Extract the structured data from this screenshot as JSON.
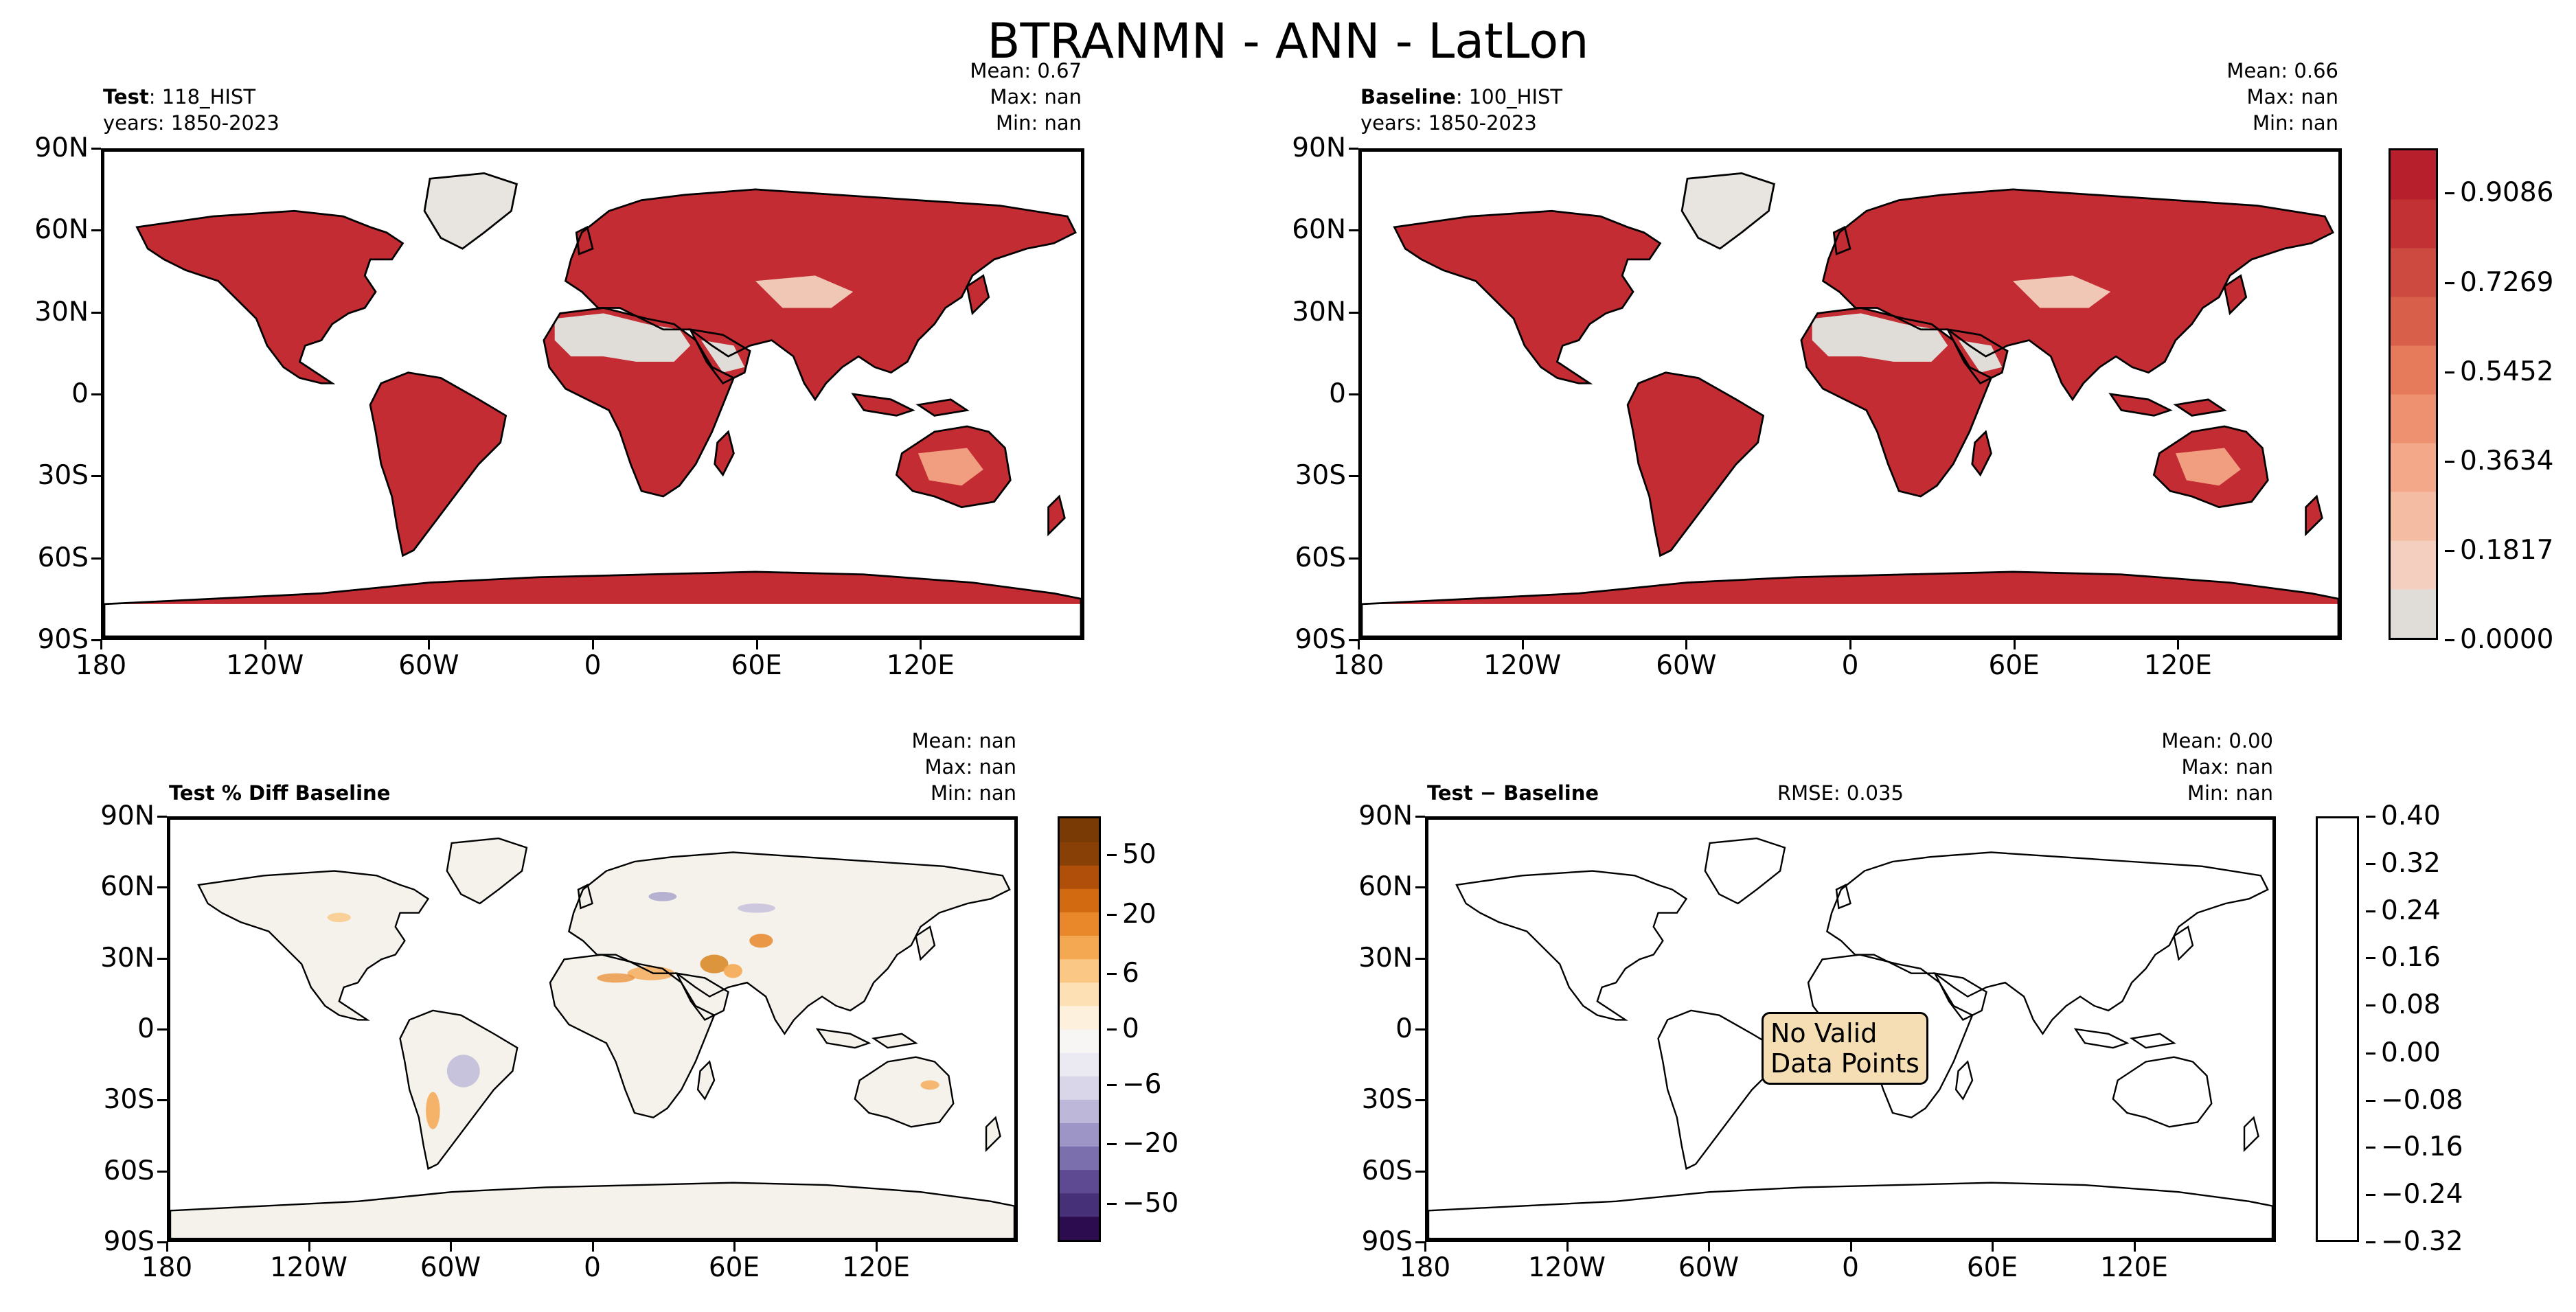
{
  "suptitle": "BTRANMN - ANN - LatLon",
  "panels": {
    "test": {
      "label_bold": "Test",
      "label_rest": ": 118_HIST",
      "years": "years: 1850-2023",
      "stats": {
        "mean": "Mean:  0.67",
        "max": "Max:   nan",
        "min": "Min:   nan"
      }
    },
    "baseline": {
      "label_bold": "Baseline",
      "label_rest": ": 100_HIST",
      "years": "years: 1850-2023",
      "stats": {
        "mean": "Mean:  0.66",
        "max": "Max:   nan",
        "min": "Min:   nan"
      }
    },
    "pctdiff": {
      "label_bold": "Test % Diff Baseline",
      "stats": {
        "mean": "Mean:   nan",
        "max": "Max:   nan",
        "min": "Min:   nan"
      }
    },
    "diff": {
      "label_bold": "Test − Baseline",
      "rmse": "RMSE: 0.035",
      "stats": {
        "mean": "Mean:  0.00",
        "max": "Max:   nan",
        "min": "Min:   nan"
      },
      "nodata_text": "No Valid\nData Points"
    }
  },
  "lat_ticks": [
    "90N",
    "60N",
    "30N",
    "0",
    "30S",
    "60S",
    "90S"
  ],
  "lon_ticks": [
    "180",
    "120W",
    "60W",
    "0",
    "60E",
    "120E"
  ],
  "colorbars": {
    "main": {
      "ticks": [
        "0.9086",
        "0.7269",
        "0.5452",
        "0.3634",
        "0.1817",
        "0.0000"
      ],
      "colors": [
        "#e0dcd8",
        "#f4cfbf",
        "#f5bca4",
        "#f3a88a",
        "#ee9170",
        "#e57b5b",
        "#d8604a",
        "#cc4a40",
        "#c23134",
        "#b81f2d"
      ]
    },
    "pct": {
      "ticks": [
        "50",
        "20",
        "6",
        "0",
        "−6",
        "−20",
        "−50"
      ],
      "colors": [
        "#2d0b4f",
        "#463077",
        "#5e4a92",
        "#7b6fae",
        "#9c95c6",
        "#bdb7d9",
        "#d9d6e9",
        "#ebe9f1",
        "#f7f6f4",
        "#fdf0dd",
        "#fde0b4",
        "#fbc784",
        "#f5a852",
        "#e8882a",
        "#d26a12",
        "#b04f0a",
        "#884006",
        "#7a3a05"
      ]
    },
    "diff": {
      "ticks": [
        "0.40",
        "0.32",
        "0.24",
        "0.16",
        "0.08",
        "0.00",
        "−0.08",
        "−0.16",
        "−0.24",
        "−0.32"
      ]
    }
  },
  "chart_data": [
    {
      "type": "heatmap",
      "title": "Test: 118_HIST",
      "subtitle": "years: 1850-2023",
      "xlim": [
        -180,
        180
      ],
      "ylim": [
        -90,
        90
      ],
      "stats": {
        "mean": 0.67,
        "max": "nan",
        "min": "nan"
      },
      "colorbar": {
        "min": 0.0,
        "max": 0.9086,
        "ticks": [
          0.0,
          0.1817,
          0.3634,
          0.5452,
          0.7269,
          0.9086
        ]
      }
    },
    {
      "type": "heatmap",
      "title": "Baseline: 100_HIST",
      "subtitle": "years: 1850-2023",
      "xlim": [
        -180,
        180
      ],
      "ylim": [
        -90,
        90
      ],
      "stats": {
        "mean": 0.66,
        "max": "nan",
        "min": "nan"
      }
    },
    {
      "type": "heatmap",
      "title": "Test % Diff Baseline",
      "xlim": [
        -180,
        180
      ],
      "ylim": [
        -90,
        90
      ],
      "stats": {
        "mean": "nan",
        "max": "nan",
        "min": "nan"
      },
      "colorbar": {
        "ticks": [
          -50,
          -20,
          -6,
          0,
          6,
          20,
          50
        ]
      }
    },
    {
      "type": "heatmap",
      "title": "Test − Baseline",
      "xlim": [
        -180,
        180
      ],
      "ylim": [
        -90,
        90
      ],
      "rmse": 0.035,
      "stats": {
        "mean": 0.0,
        "max": "nan",
        "min": "nan"
      },
      "annotation": "No Valid Data Points",
      "colorbar": {
        "ticks": [
          -0.32,
          -0.24,
          -0.16,
          -0.08,
          0.0,
          0.08,
          0.16,
          0.24,
          0.32,
          0.4
        ]
      }
    }
  ]
}
